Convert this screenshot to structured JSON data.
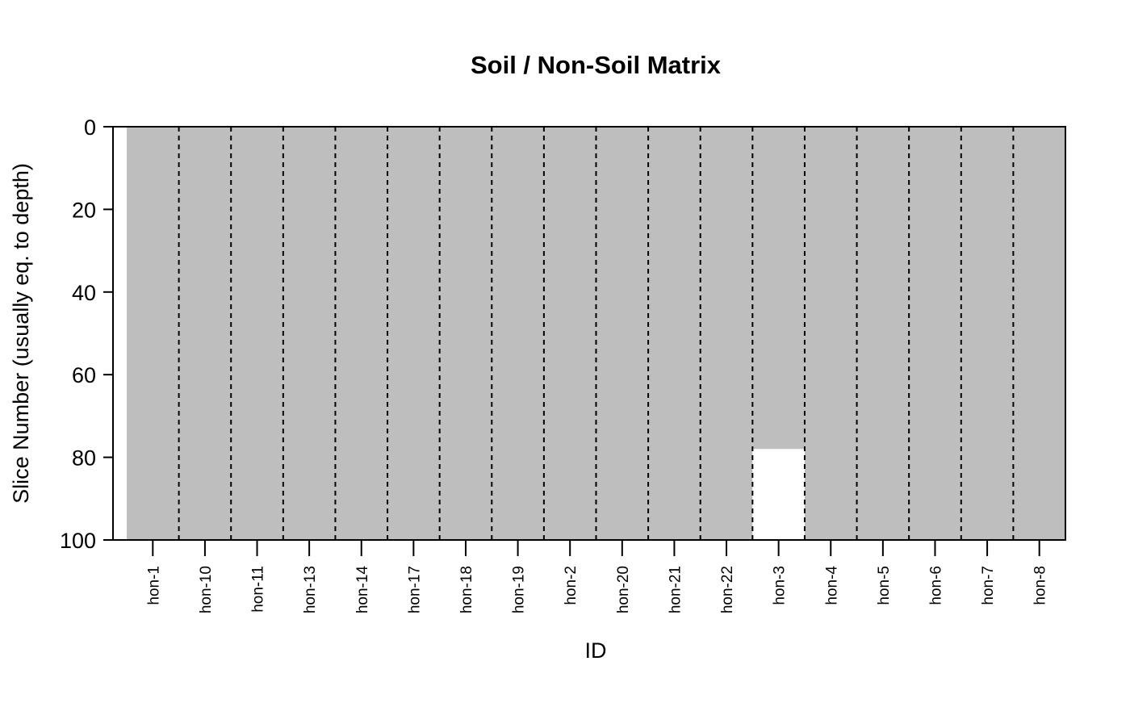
{
  "chart_data": {
    "type": "heatmap",
    "title": "Soil / Non-Soil Matrix",
    "xlabel": "ID",
    "ylabel": "Slice Number (usually eq. to depth)",
    "ylim": [
      0,
      100
    ],
    "y_reversed": true,
    "y_ticks": [
      "0",
      "20",
      "40",
      "60",
      "80",
      "100"
    ],
    "categories": [
      "hon-1",
      "hon-10",
      "hon-11",
      "hon-13",
      "hon-14",
      "hon-17",
      "hon-18",
      "hon-19",
      "hon-2",
      "hon-20",
      "hon-21",
      "hon-22",
      "hon-3",
      "hon-4",
      "hon-5",
      "hon-6",
      "hon-7",
      "hon-8"
    ],
    "soil_depth": [
      100,
      100,
      100,
      100,
      100,
      100,
      100,
      100,
      100,
      100,
      100,
      100,
      78,
      100,
      100,
      100,
      100,
      100
    ],
    "colors": {
      "soil": "#bebebe",
      "non_soil": "#ffffff",
      "separator": "#000000",
      "frame": "#000000"
    },
    "grid": false,
    "legend": "none"
  }
}
